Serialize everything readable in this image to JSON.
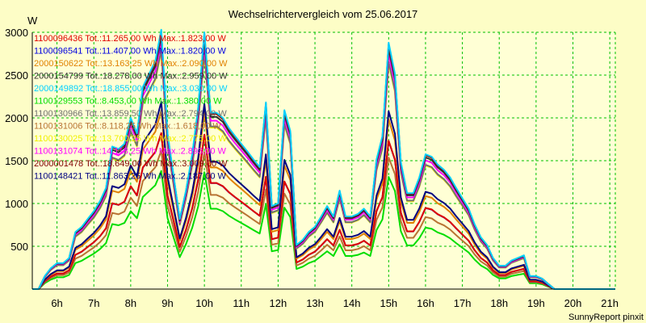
{
  "chart_data": {
    "type": "line",
    "title": "Wechselrichtervergleich vom 25.06.2017",
    "ylabel": "W",
    "xlabel": "",
    "footer": "SunnyReport pinxit",
    "xlim": [
      5.33,
      21.15
    ],
    "ylim": [
      0,
      3000
    ],
    "grid": true,
    "legend_placement": "top-left",
    "x_ticks": [
      {
        "value": 6,
        "label": "6h"
      },
      {
        "value": 7,
        "label": "7h"
      },
      {
        "value": 8,
        "label": "8h"
      },
      {
        "value": 9,
        "label": "9h"
      },
      {
        "value": 10,
        "label": "10h"
      },
      {
        "value": 11,
        "label": "11h"
      },
      {
        "value": 12,
        "label": "12h"
      },
      {
        "value": 13,
        "label": "13h"
      },
      {
        "value": 14,
        "label": "14h"
      },
      {
        "value": 15,
        "label": "15h"
      },
      {
        "value": 16,
        "label": "16h"
      },
      {
        "value": 17,
        "label": "17h"
      },
      {
        "value": 18,
        "label": "18h"
      },
      {
        "value": 19,
        "label": "19h"
      },
      {
        "value": 20,
        "label": "20h"
      },
      {
        "value": 21,
        "label": "21h"
      }
    ],
    "y_ticks": [
      {
        "value": 500,
        "label": "500"
      },
      {
        "value": 1000,
        "label": "1000"
      },
      {
        "value": 1500,
        "label": "1500"
      },
      {
        "value": 2000,
        "label": "2000"
      },
      {
        "value": 2500,
        "label": "2500"
      },
      {
        "value": 3000,
        "label": "3000"
      }
    ],
    "x": [
      5.33,
      5.5,
      5.67,
      5.83,
      6.0,
      6.17,
      6.33,
      6.5,
      6.67,
      6.83,
      7.0,
      7.17,
      7.33,
      7.5,
      7.67,
      7.83,
      8.0,
      8.17,
      8.33,
      8.5,
      8.67,
      8.83,
      9.0,
      9.17,
      9.33,
      9.5,
      9.67,
      9.83,
      10.0,
      10.17,
      10.33,
      10.5,
      10.67,
      10.83,
      11.0,
      11.17,
      11.33,
      11.5,
      11.67,
      11.83,
      12.0,
      12.17,
      12.33,
      12.5,
      12.67,
      12.83,
      13.0,
      13.17,
      13.33,
      13.5,
      13.67,
      13.83,
      14.0,
      14.17,
      14.33,
      14.5,
      14.67,
      14.83,
      15.0,
      15.17,
      15.33,
      15.5,
      15.67,
      15.83,
      16.0,
      16.17,
      16.33,
      16.5,
      16.67,
      16.83,
      17.0,
      17.17,
      17.33,
      17.5,
      17.67,
      17.83,
      18.0,
      18.17,
      18.33,
      18.5,
      18.67,
      18.83,
      19.0,
      19.17,
      19.33,
      19.5,
      19.67,
      19.83,
      20.0,
      20.17,
      20.33,
      20.5,
      20.67,
      20.83,
      21.0,
      21.15
    ],
    "profile": [
      0,
      0,
      0.05,
      0.08,
      0.1,
      0.1,
      0.12,
      0.22,
      0.24,
      0.27,
      0.3,
      0.34,
      0.39,
      0.55,
      0.54,
      0.56,
      0.66,
      0.6,
      0.78,
      0.83,
      0.88,
      1.0,
      0.6,
      0.43,
      0.27,
      0.38,
      0.52,
      0.7,
      0.99,
      0.68,
      0.68,
      0.66,
      0.62,
      0.59,
      0.56,
      0.53,
      0.5,
      0.47,
      0.72,
      0.32,
      0.33,
      0.69,
      0.61,
      0.17,
      0.19,
      0.22,
      0.24,
      0.28,
      0.32,
      0.28,
      0.38,
      0.28,
      0.28,
      0.29,
      0.31,
      0.28,
      0.5,
      0.59,
      0.95,
      0.83,
      0.49,
      0.37,
      0.37,
      0.43,
      0.52,
      0.51,
      0.48,
      0.46,
      0.43,
      0.39,
      0.35,
      0.31,
      0.25,
      0.2,
      0.17,
      0.12,
      0.09,
      0.09,
      0.11,
      0.12,
      0.13,
      0.05,
      0.05,
      0.04,
      0.02,
      0.0,
      0,
      0,
      0,
      0,
      0,
      0,
      0,
      0,
      0,
      0
    ],
    "series": [
      {
        "name": "1100096436 Tot.:11.265,00 Wh Max.:1.823,00 W",
        "peak": 1823,
        "color": "#e00000"
      },
      {
        "name": "1100096541 Tot.:11.407,00 Wh Max.:1.820,00 W",
        "peak": 1820,
        "color": "#0000e0"
      },
      {
        "name": "2000150622 Tot.:13.163,25 Wh Max.:2.090,00 W",
        "peak": 2090,
        "color": "#e08000"
      },
      {
        "name": "2000154799 Tot.:18.278,00 Wh Max.:2.959,00 W",
        "peak": 2959,
        "color": "#303030"
      },
      {
        "name": "2000149892 Tot.:18.855,00 Wh Max.:3.030,00 W",
        "peak": 3030,
        "color": "#00d0ff"
      },
      {
        "name": "1100129553 Tot.:8.453,00 Wh Max.:1.380,00 W",
        "peak": 1380,
        "color": "#00dd00"
      },
      {
        "name": "1100130966 Tot.:13.859,50 Wh Max.:2.794,00 W",
        "peak": 2794,
        "color": "#707070"
      },
      {
        "name": "1100131006 Tot.:8.118,25 Wh Max.:1.618,00 W",
        "peak": 1618,
        "color": "#b87333"
      },
      {
        "name": "1100130025 Tot.:13.700,25 Wh Max.:2.775,00 W",
        "peak": 2775,
        "color": "#f0f000"
      },
      {
        "name": "1100131074 Tot.:14.118,25 Wh Max.:2.893,00 W",
        "peak": 2893,
        "color": "#ff00ff"
      },
      {
        "name": "2000001478 Tot.:18.649,00 Wh Max.:3.009,00 W",
        "peak": 3009,
        "color": "#800000"
      },
      {
        "name": "1100148421 Tot.:11.863,25 Wh Max.:2.187,00 W",
        "peak": 2187,
        "color": "#000080"
      }
    ]
  },
  "colors": {
    "background": "#fdfdc6",
    "plot_background": "#ffffd5",
    "grid": "#00c000",
    "axis": "#000000"
  }
}
